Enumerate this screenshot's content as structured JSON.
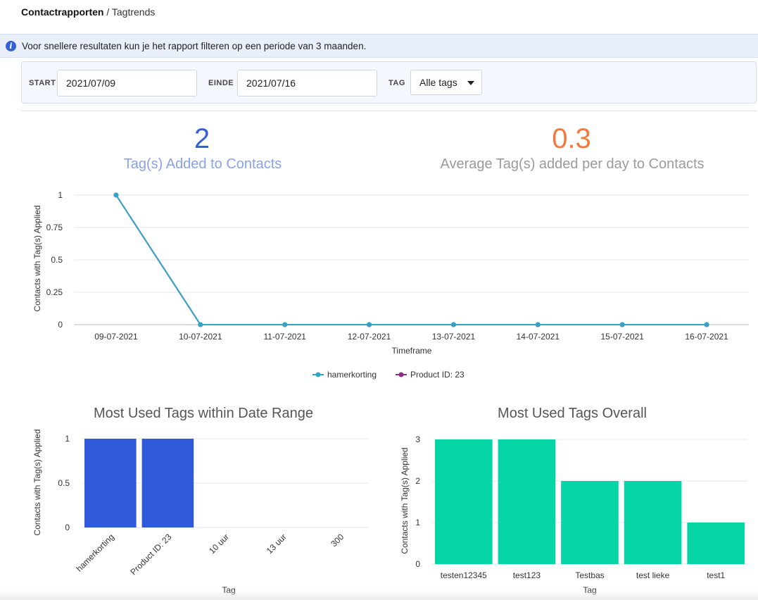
{
  "breadcrumb": {
    "parent": "Contactrapporten",
    "separator": " / ",
    "current": "Tagtrends"
  },
  "info": {
    "icon": "info-icon",
    "text": "Voor snellere resultaten kun je het rapport filteren op een periode van 3 maanden."
  },
  "filters": {
    "start_label": "START",
    "start_value": "2021/07/09",
    "end_label": "EINDE",
    "end_value": "2021/07/16",
    "tag_label": "TAG",
    "tag_value": "Alle tags"
  },
  "stats": {
    "added_value": "2",
    "added_label": "Tag(s) Added to Contacts",
    "added_color": "#3561d8",
    "added_label_color": "#8aa2e6",
    "avg_value": "0.3",
    "avg_label": "Average Tag(s) added per day to Contacts",
    "avg_color": "#f07a3d",
    "avg_label_color": "#9a9a9a"
  },
  "chart_data": [
    {
      "type": "line",
      "title": "",
      "xlabel": "Timeframe",
      "ylabel": "Contacts with Tag(s) Applied",
      "x": [
        "09-07-2021",
        "10-07-2021",
        "11-07-2021",
        "12-07-2021",
        "13-07-2021",
        "14-07-2021",
        "15-07-2021",
        "16-07-2021"
      ],
      "yticks": [
        "0",
        "0.25",
        "0.5",
        "0.75",
        "1"
      ],
      "ylim": [
        0,
        1
      ],
      "grid": true,
      "legend": "bottom",
      "series": [
        {
          "name": "hamerkorting",
          "color": "#2fa5c8",
          "values": [
            1,
            0,
            0,
            0,
            0,
            0,
            0,
            0
          ]
        },
        {
          "name": "Product ID: 23",
          "color": "#8e2b8c",
          "values": [
            1,
            0,
            0,
            0,
            0,
            0,
            0,
            0
          ]
        }
      ]
    },
    {
      "type": "bar",
      "title": "Most Used Tags within Date Range",
      "xlabel": "Tag",
      "ylabel": "Contacts with Tag(s) Applied",
      "categories": [
        "hamerkorting",
        "Product ID: 23",
        "10 uur",
        "13 uur",
        "300"
      ],
      "values": [
        1,
        1,
        0,
        0,
        0
      ],
      "yticks": [
        "0",
        "0.5",
        "1"
      ],
      "ylim": [
        0,
        1
      ],
      "color": "#3058db"
    },
    {
      "type": "bar",
      "title": "Most Used Tags Overall",
      "xlabel": "Tag",
      "ylabel": "Contacts with Tag(s) Applied",
      "categories": [
        "testen12345",
        "test123",
        "Testbas",
        "test lieke",
        "test1"
      ],
      "values": [
        3,
        3,
        2,
        2,
        1
      ],
      "yticks": [
        "0",
        "1",
        "2",
        "3"
      ],
      "ylim": [
        0,
        3
      ],
      "color": "#06d6a6"
    }
  ]
}
